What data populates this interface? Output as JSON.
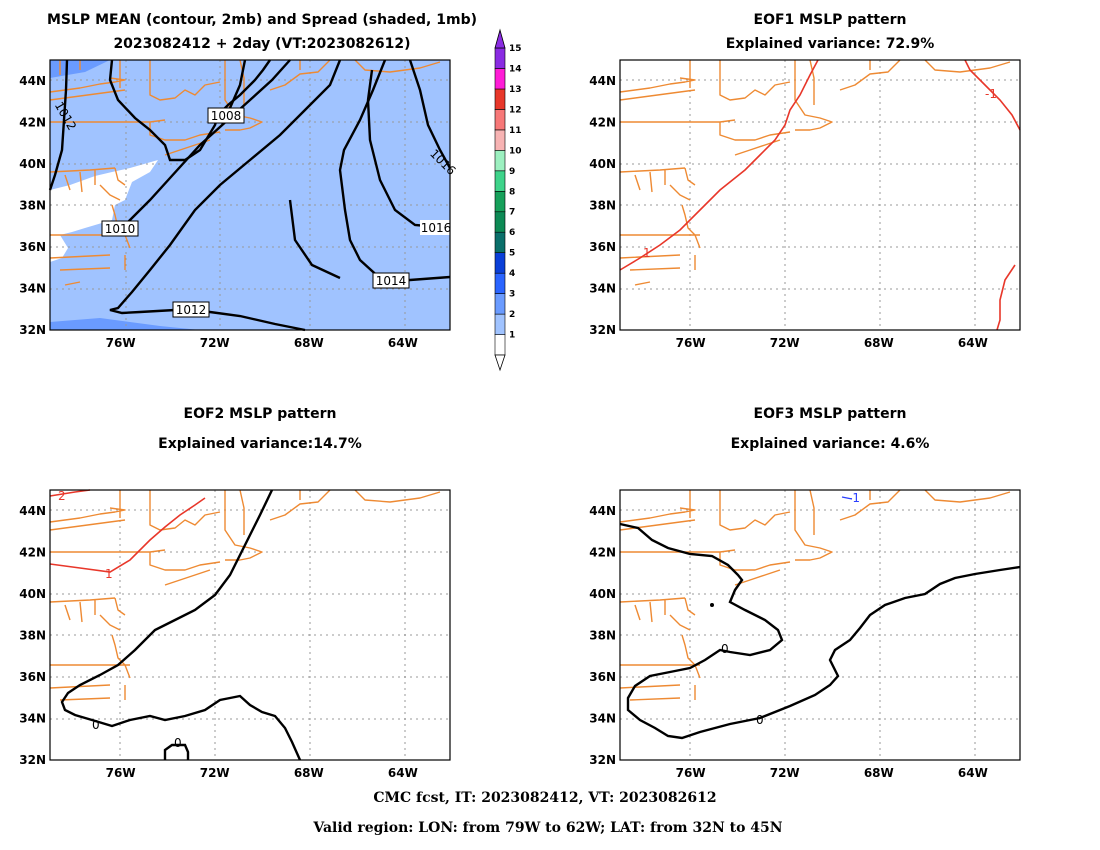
{
  "panels": [
    {
      "id": "mean",
      "title_lines": [
        "MSLP MEAN (contour, 2mb) and Spread (shaded, 1mb)",
        "2023082412 + 2day (VT:2023082612)"
      ]
    },
    {
      "id": "eof1",
      "title_lines": [
        "EOF1 MSLP pattern",
        "Explained variance: 72.9%"
      ]
    },
    {
      "id": "eof2",
      "title_lines": [
        "EOF2 MSLP pattern",
        "Explained variance:14.7%"
      ]
    },
    {
      "id": "eof3",
      "title_lines": [
        "EOF3 MSLP pattern",
        "Explained variance: 4.6%"
      ]
    }
  ],
  "axes": {
    "lon_ticks": [
      "76W",
      "72W",
      "68W",
      "64W"
    ],
    "lon_tick_values": [
      -76,
      -72,
      -68,
      -64
    ],
    "lat_ticks": [
      "44N",
      "42N",
      "40N",
      "38N",
      "36N",
      "34N",
      "32N"
    ],
    "lat_tick_values": [
      44,
      42,
      40,
      38,
      36,
      34,
      32
    ],
    "lon_range": [
      -79,
      -62
    ],
    "lat_range": [
      32,
      45
    ]
  },
  "colorbar": {
    "labels": [
      "1",
      "2",
      "3",
      "4",
      "5",
      "6",
      "7",
      "8",
      "9",
      "10",
      "11",
      "12",
      "13",
      "14",
      "15"
    ],
    "colors": [
      "#ffffff",
      "#a0c3ff",
      "#6a9bff",
      "#2a64ff",
      "#0a3fd8",
      "#0a6f6a",
      "#0d8a55",
      "#16a05a",
      "#3ed38a",
      "#9cf0c0",
      "#f7b3b3",
      "#f77878",
      "#e8372a",
      "#ff1cd6",
      "#8a2be2"
    ]
  },
  "chart_data": [
    {
      "type": "contour",
      "panel": "mean",
      "title": "MSLP MEAN (contour, 2mb) and Spread (shaded, 1mb)",
      "subtitle": "2023082412 + 2day (VT:2023082612)",
      "contour_labels": [
        "1008",
        "1010",
        "1012",
        "1012",
        "1014",
        "1016",
        "1016"
      ],
      "shading": "spread mostly 1-3 mb",
      "xlim": [
        -79,
        -62
      ],
      "ylim": [
        32,
        45
      ]
    },
    {
      "type": "contour",
      "panel": "eof1",
      "title": "EOF1 MSLP pattern",
      "subtitle": "Explained variance: 72.9%",
      "explained_variance": 72.9,
      "contour_labels": [
        "1",
        "-1"
      ]
    },
    {
      "type": "contour",
      "panel": "eof2",
      "title": "EOF2 MSLP pattern",
      "subtitle": "Explained variance:14.7%",
      "explained_variance": 14.7,
      "contour_labels": [
        "2",
        "1",
        "0",
        "0"
      ]
    },
    {
      "type": "contour",
      "panel": "eof3",
      "title": "EOF3 MSLP pattern",
      "subtitle": "Explained variance: 4.6%",
      "explained_variance": 4.6,
      "contour_labels": [
        "-1",
        "0",
        "0"
      ]
    }
  ],
  "footer": {
    "line1": "CMC fcst, IT: 2023082412, VT: 2023082612",
    "line2": "Valid region: LON: from 79W to 62W; LAT: from 32N to 45N"
  }
}
